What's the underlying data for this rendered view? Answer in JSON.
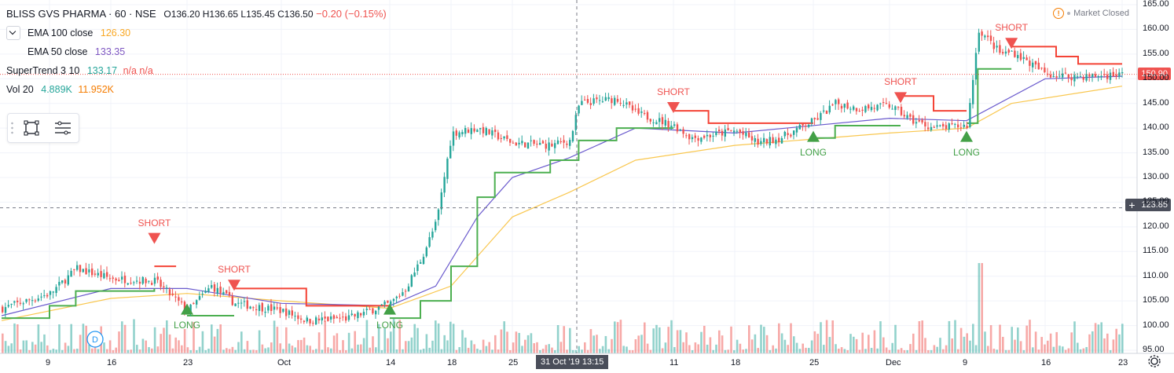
{
  "header": {
    "symbol": "BLISS GVS PHARMA · 60 · NSE",
    "ohlc": "O136.20 H136.65 L135.45 C136.50",
    "change": "−0.20 (−0.15%)"
  },
  "market_status": "Market Closed",
  "indicators": [
    {
      "label": "EMA 100 close",
      "value": "126.30",
      "color": "#f9a825"
    },
    {
      "label": "EMA 50 close",
      "value": "133.35",
      "color": "#7e57c2"
    },
    {
      "label": "SuperTrend 3 10",
      "value": "133.17",
      "extra": "n/a n/a",
      "color": "#26a69a",
      "extra_color": "#ef5350"
    },
    {
      "label": "Vol 20",
      "value": "4.889K",
      "value2": "11.952K",
      "color": "#26a69a",
      "color2": "#f57c00"
    }
  ],
  "colors": {
    "up": "#26a69a",
    "down": "#ef5350",
    "ema100": "#f9c74f",
    "ema50": "#6a5acd",
    "st_up": "#4caf50",
    "st_down": "#f44336",
    "grid": "#f0f3fa",
    "axis_text": "#131722"
  },
  "crosshair": {
    "price_label": "123.85",
    "time_label": "31 Oct '19   13:15"
  },
  "last_price_label": "150.90",
  "signals": [
    {
      "type": "SHORT",
      "date": "2019-09-20",
      "price": 117.5
    },
    {
      "type": "LONG",
      "date": "2019-09-23",
      "price": 103.5
    },
    {
      "type": "SHORT",
      "date": "2019-09-27",
      "price": 108
    },
    {
      "type": "LONG",
      "date": "2019-10-14",
      "price": 103.5
    },
    {
      "type": "SHORT",
      "date": "2019-11-11",
      "price": 144
    },
    {
      "type": "LONG",
      "date": "2019-11-25",
      "price": 138.5
    },
    {
      "type": "SHORT",
      "date": "2019-12-03",
      "price": 146
    },
    {
      "type": "LONG",
      "date": "2019-12-09",
      "price": 138.5
    },
    {
      "type": "SHORT",
      "date": "2019-12-13",
      "price": 157
    }
  ],
  "chart_data": {
    "type": "candlestick",
    "x_tick_labels": [
      "9",
      "16",
      "23",
      "Oct",
      "14",
      "18",
      "25",
      "11",
      "18",
      "25",
      "Dec",
      "9",
      "16",
      "23"
    ],
    "y_tick_labels": [
      "165.00",
      "160.00",
      "155.00",
      "150.00",
      "145.00",
      "140.00",
      "135.00",
      "130.00",
      "125.00",
      "120.00",
      "115.00",
      "110.00",
      "105.00",
      "100.00",
      "95.00"
    ],
    "ylim": [
      94,
      166
    ],
    "y_scale": "linear",
    "grid": true,
    "volume_scale_top_price": 112,
    "closes": [
      {
        "date": "2019-09-05",
        "close": 103.5
      },
      {
        "date": "2019-09-09",
        "close": 106.5
      },
      {
        "date": "2019-09-12",
        "close": 111.5
      },
      {
        "date": "2019-09-16",
        "close": 109.5
      },
      {
        "date": "2019-09-20",
        "close": 109.0
      },
      {
        "date": "2019-09-23",
        "close": 103.0
      },
      {
        "date": "2019-09-25",
        "close": 108.0
      },
      {
        "date": "2019-09-27",
        "close": 104.5
      },
      {
        "date": "2019-10-01",
        "close": 103.0
      },
      {
        "date": "2019-10-04",
        "close": 101.0
      },
      {
        "date": "2019-10-09",
        "close": 101.5
      },
      {
        "date": "2019-10-14",
        "close": 104.5
      },
      {
        "date": "2019-10-15",
        "close": 107.5
      },
      {
        "date": "2019-10-16",
        "close": 113.5
      },
      {
        "date": "2019-10-17",
        "close": 121.0
      },
      {
        "date": "2019-10-18",
        "close": 139.0
      },
      {
        "date": "2019-10-21",
        "close": 140.0
      },
      {
        "date": "2019-10-23",
        "close": 138.5
      },
      {
        "date": "2019-10-25",
        "close": 137.0
      },
      {
        "date": "2019-10-29",
        "close": 136.5
      },
      {
        "date": "2019-10-31",
        "close": 137.5
      },
      {
        "date": "2019-11-01",
        "close": 145.0
      },
      {
        "date": "2019-11-05",
        "close": 146.0
      },
      {
        "date": "2019-11-07",
        "close": 143.0
      },
      {
        "date": "2019-11-11",
        "close": 140.5
      },
      {
        "date": "2019-11-13",
        "close": 138.0
      },
      {
        "date": "2019-11-15",
        "close": 138.5
      },
      {
        "date": "2019-11-18",
        "close": 139.5
      },
      {
        "date": "2019-11-20",
        "close": 137.0
      },
      {
        "date": "2019-11-22",
        "close": 138.0
      },
      {
        "date": "2019-11-25",
        "close": 141.5
      },
      {
        "date": "2019-11-27",
        "close": 145.0
      },
      {
        "date": "2019-11-29",
        "close": 144.0
      },
      {
        "date": "2019-12-02",
        "close": 144.5
      },
      {
        "date": "2019-12-04",
        "close": 141.5
      },
      {
        "date": "2019-12-06",
        "close": 140.0
      },
      {
        "date": "2019-12-09",
        "close": 140.5
      },
      {
        "date": "2019-12-10",
        "close": 160.0
      },
      {
        "date": "2019-12-12",
        "close": 155.0
      },
      {
        "date": "2019-12-13",
        "close": 155.5
      },
      {
        "date": "2019-12-16",
        "close": 151.0
      },
      {
        "date": "2019-12-18",
        "close": 150.5
      },
      {
        "date": "2019-12-20",
        "close": 150.5
      },
      {
        "date": "2019-12-23",
        "close": 150.9
      }
    ],
    "ema50_series": {
      "name": "EMA 50 close",
      "points": [
        {
          "date": "2019-09-05",
          "value": 102.0
        },
        {
          "date": "2019-09-16",
          "value": 107.5
        },
        {
          "date": "2019-09-23",
          "value": 107.5
        },
        {
          "date": "2019-10-01",
          "value": 104.5
        },
        {
          "date": "2019-10-14",
          "value": 104.0
        },
        {
          "date": "2019-10-17",
          "value": 108.0
        },
        {
          "date": "2019-10-21",
          "value": 122.0
        },
        {
          "date": "2019-10-25",
          "value": 130.0
        },
        {
          "date": "2019-10-31",
          "value": 134.0
        },
        {
          "date": "2019-11-07",
          "value": 140.0
        },
        {
          "date": "2019-11-18",
          "value": 139.0
        },
        {
          "date": "2019-12-02",
          "value": 142.0
        },
        {
          "date": "2019-12-09",
          "value": 141.5
        },
        {
          "date": "2019-12-16",
          "value": 150.0
        },
        {
          "date": "2019-12-23",
          "value": 150.5
        }
      ]
    },
    "ema100_series": {
      "name": "EMA 100 close",
      "points": [
        {
          "date": "2019-09-05",
          "value": 101.0
        },
        {
          "date": "2019-09-16",
          "value": 105.5
        },
        {
          "date": "2019-09-23",
          "value": 106.5
        },
        {
          "date": "2019-10-01",
          "value": 105.0
        },
        {
          "date": "2019-10-14",
          "value": 103.5
        },
        {
          "date": "2019-10-18",
          "value": 108.0
        },
        {
          "date": "2019-10-25",
          "value": 122.0
        },
        {
          "date": "2019-10-31",
          "value": 127.0
        },
        {
          "date": "2019-11-07",
          "value": 133.5
        },
        {
          "date": "2019-11-18",
          "value": 136.5
        },
        {
          "date": "2019-12-02",
          "value": 139.0
        },
        {
          "date": "2019-12-09",
          "value": 140.0
        },
        {
          "date": "2019-12-13",
          "value": 145.0
        },
        {
          "date": "2019-12-23",
          "value": 148.5
        }
      ]
    },
    "supertrend_series": {
      "name": "SuperTrend 3 10",
      "segments": [
        {
          "trend": "up",
          "points": [
            {
              "date": "2019-09-05",
              "value": 101.5
            },
            {
              "date": "2019-09-09",
              "value": 104.0
            },
            {
              "date": "2019-09-12",
              "value": 107.0
            },
            {
              "date": "2019-09-20",
              "value": 107.5
            }
          ]
        },
        {
          "trend": "down",
          "points": [
            {
              "date": "2019-09-20",
              "value": 112.0
            },
            {
              "date": "2019-09-22",
              "value": 112.0
            }
          ]
        },
        {
          "trend": "up",
          "points": [
            {
              "date": "2019-09-23",
              "value": 102.0
            },
            {
              "date": "2019-09-27",
              "value": 102.0
            }
          ]
        },
        {
          "trend": "down",
          "points": [
            {
              "date": "2019-09-27",
              "value": 107.5
            },
            {
              "date": "2019-10-04",
              "value": 104.0
            },
            {
              "date": "2019-10-14",
              "value": 104.0
            }
          ]
        },
        {
          "trend": "up",
          "points": [
            {
              "date": "2019-10-14",
              "value": 101.5
            },
            {
              "date": "2019-10-16",
              "value": 105.0
            },
            {
              "date": "2019-10-18",
              "value": 112.0
            },
            {
              "date": "2019-10-21",
              "value": 126.0
            },
            {
              "date": "2019-10-23",
              "value": 131.0
            },
            {
              "date": "2019-10-29",
              "value": 133.5
            },
            {
              "date": "2019-11-01",
              "value": 137.5
            },
            {
              "date": "2019-11-05",
              "value": 140.0
            },
            {
              "date": "2019-11-11",
              "value": 140.0
            }
          ]
        },
        {
          "trend": "down",
          "points": [
            {
              "date": "2019-11-11",
              "value": 143.5
            },
            {
              "date": "2019-11-15",
              "value": 141.0
            },
            {
              "date": "2019-11-25",
              "value": 141.0
            }
          ]
        },
        {
          "trend": "up",
          "points": [
            {
              "date": "2019-11-25",
              "value": 138.0
            },
            {
              "date": "2019-11-27",
              "value": 140.5
            },
            {
              "date": "2019-12-03",
              "value": 140.5
            }
          ]
        },
        {
          "trend": "down",
          "points": [
            {
              "date": "2019-12-03",
              "value": 146.5
            },
            {
              "date": "2019-12-06",
              "value": 143.5
            },
            {
              "date": "2019-12-09",
              "value": 143.5
            }
          ]
        },
        {
          "trend": "up",
          "points": [
            {
              "date": "2019-12-09",
              "value": 141.0
            },
            {
              "date": "2019-12-10",
              "value": 152.0
            },
            {
              "date": "2019-12-13",
              "value": 152.0
            }
          ]
        },
        {
          "trend": "down",
          "points": [
            {
              "date": "2019-12-13",
              "value": 156.5
            },
            {
              "date": "2019-12-17",
              "value": 154.5
            },
            {
              "date": "2019-12-19",
              "value": 153.0
            },
            {
              "date": "2019-12-23",
              "value": 153.0
            }
          ]
        }
      ]
    }
  }
}
